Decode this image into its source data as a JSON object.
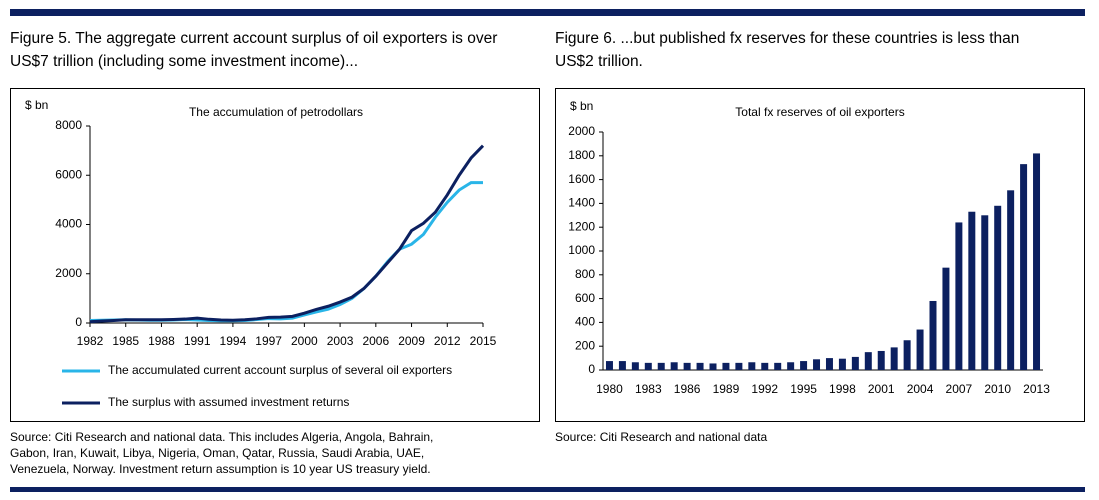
{
  "chart_data": [
    {
      "type": "line",
      "figure_title": [
        "Figure 5. The aggregate current account surplus of oil exporters is over",
        "US$7 trillion (including some investment income)..."
      ],
      "title": "The accumulation of petrodollars",
      "y_label": "$ bn",
      "x": [
        1982,
        1983,
        1984,
        1985,
        1986,
        1987,
        1988,
        1989,
        1990,
        1991,
        1992,
        1993,
        1994,
        1995,
        1996,
        1997,
        1998,
        1999,
        2000,
        2001,
        2002,
        2003,
        2004,
        2005,
        2006,
        2007,
        2008,
        2009,
        2010,
        2011,
        2012,
        2013,
        2014,
        2015
      ],
      "xlim": [
        1982,
        2015
      ],
      "xticks": [
        1982,
        1985,
        1988,
        1991,
        1994,
        1997,
        2000,
        2003,
        2006,
        2009,
        2012,
        2015
      ],
      "ylim": [
        0,
        8000
      ],
      "yticks": [
        0,
        2000,
        4000,
        6000,
        8000
      ],
      "series": [
        {
          "name": "The accumulated current account surplus of several oil exporters",
          "color": "#29b5e8",
          "values": [
            100,
            110,
            120,
            130,
            120,
            110,
            110,
            120,
            140,
            120,
            100,
            90,
            90,
            100,
            140,
            180,
            170,
            200,
            330,
            450,
            560,
            750,
            1000,
            1400,
            1900,
            2500,
            3000,
            3200,
            3600,
            4300,
            4900,
            5400,
            5700,
            5700
          ]
        },
        {
          "name": "The surplus with assumed investment returns",
          "color": "#0c2060",
          "values": [
            50,
            80,
            100,
            130,
            130,
            130,
            130,
            140,
            160,
            200,
            150,
            120,
            110,
            130,
            170,
            230,
            240,
            270,
            400,
            550,
            680,
            850,
            1050,
            1400,
            1900,
            2450,
            3000,
            3750,
            4050,
            4500,
            5200,
            6000,
            6700,
            7200
          ]
        }
      ],
      "source": [
        "Source: Citi Research and national data. This includes Algeria, Angola, Bahrain,",
        "Gabon, Iran, Kuwait, Libya, Nigeria, Oman, Qatar, Russia, Saudi Arabia, UAE,",
        "Venezuela, Norway. Investment return assumption is 10 year US treasury yield."
      ]
    },
    {
      "type": "bar",
      "figure_title": [
        "Figure 6. ...but published fx reserves for these countries is less than",
        "US$2 trillion."
      ],
      "title": "Total fx reserves of oil exporters",
      "y_label": "$ bn",
      "categories": [
        "1980",
        null,
        null,
        "1983",
        null,
        null,
        "1986",
        null,
        null,
        "1989",
        null,
        null,
        "1992",
        null,
        null,
        "1995",
        null,
        null,
        "1998",
        null,
        null,
        "2001",
        null,
        null,
        "2004",
        null,
        null,
        "2007",
        null,
        null,
        "2010",
        null,
        null,
        "2013"
      ],
      "values": [
        75,
        75,
        65,
        60,
        60,
        65,
        60,
        60,
        55,
        60,
        60,
        65,
        60,
        60,
        65,
        75,
        90,
        100,
        95,
        110,
        150,
        160,
        190,
        250,
        340,
        580,
        860,
        1240,
        1330,
        1300,
        1380,
        1510,
        1730,
        1820
      ],
      "color": "#0c2060",
      "ylim": [
        0,
        2000
      ],
      "yticks": [
        0,
        200,
        400,
        600,
        800,
        1000,
        1200,
        1400,
        1600,
        1800,
        2000
      ],
      "source": [
        "Source: Citi Research and national data"
      ]
    }
  ]
}
